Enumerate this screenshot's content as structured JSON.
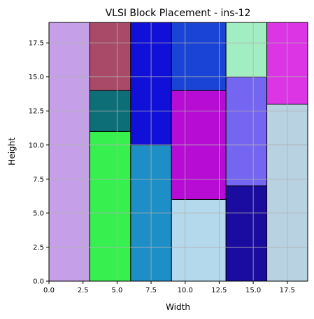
{
  "chart_data": {
    "type": "block-placement",
    "title": "VLSI Block Placement - ins-12",
    "xlabel": "Width",
    "ylabel": "Height",
    "xlim": [
      0,
      19
    ],
    "ylim": [
      0,
      19
    ],
    "grid": true,
    "x_ticks": [
      {
        "value": 0,
        "label": "0.0"
      },
      {
        "value": 2.5,
        "label": "2.5"
      },
      {
        "value": 5,
        "label": "5.0"
      },
      {
        "value": 7.5,
        "label": "7.5"
      },
      {
        "value": 10,
        "label": "10.0"
      },
      {
        "value": 12.5,
        "label": "12.5"
      },
      {
        "value": 15,
        "label": "15.0"
      },
      {
        "value": 17.5,
        "label": "17.5"
      }
    ],
    "y_ticks": [
      {
        "value": 0,
        "label": "0.0"
      },
      {
        "value": 2.5,
        "label": "2.5"
      },
      {
        "value": 5,
        "label": "5.0"
      },
      {
        "value": 7.5,
        "label": "7.5"
      },
      {
        "value": 10,
        "label": "10.0"
      },
      {
        "value": 12.5,
        "label": "12.5"
      },
      {
        "value": 15,
        "label": "15.0"
      },
      {
        "value": 17.5,
        "label": "17.5"
      }
    ],
    "blocks": [
      {
        "x": 0,
        "y": 0,
        "w": 3,
        "h": 19,
        "color": "#c5a0e8"
      },
      {
        "x": 3,
        "y": 0,
        "w": 3,
        "h": 11,
        "color": "#37f050"
      },
      {
        "x": 3,
        "y": 11,
        "w": 3,
        "h": 3,
        "color": "#0e6e78"
      },
      {
        "x": 3,
        "y": 14,
        "w": 3,
        "h": 5,
        "color": "#a84a68"
      },
      {
        "x": 6,
        "y": 0,
        "w": 3,
        "h": 10,
        "color": "#1e8fc6"
      },
      {
        "x": 6,
        "y": 10,
        "w": 3,
        "h": 9,
        "color": "#1010d8"
      },
      {
        "x": 9,
        "y": 0,
        "w": 4,
        "h": 6,
        "color": "#b4d8ec"
      },
      {
        "x": 9,
        "y": 6,
        "w": 4,
        "h": 8,
        "color": "#b60cd4"
      },
      {
        "x": 9,
        "y": 14,
        "w": 4,
        "h": 5,
        "color": "#1a44d6"
      },
      {
        "x": 13,
        "y": 0,
        "w": 3,
        "h": 7,
        "color": "#1a0c9e"
      },
      {
        "x": 13,
        "y": 7,
        "w": 3,
        "h": 8,
        "color": "#7466f0"
      },
      {
        "x": 13,
        "y": 15,
        "w": 3,
        "h": 4,
        "color": "#a2eec2"
      },
      {
        "x": 16,
        "y": 0,
        "w": 3,
        "h": 13,
        "color": "#b8d2e2"
      },
      {
        "x": 16,
        "y": 13,
        "w": 3,
        "h": 6,
        "color": "#dc36e4"
      }
    ]
  }
}
